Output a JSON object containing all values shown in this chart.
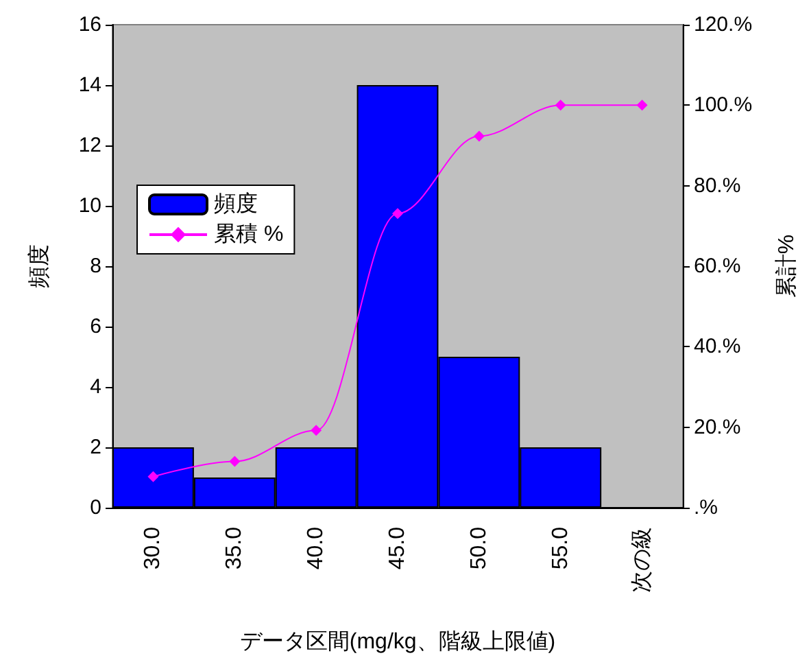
{
  "chart_data": {
    "type": "bar",
    "categories": [
      "30.0",
      "35.0",
      "40.0",
      "45.0",
      "50.0",
      "55.0",
      "次の級"
    ],
    "series": [
      {
        "name": "頻度",
        "color": "#0000ff",
        "values": [
          2,
          1,
          2,
          14,
          5,
          2,
          0
        ]
      },
      {
        "name": "累積 %",
        "type": "line",
        "axis": "y2",
        "color": "#ff00ff",
        "values": [
          7.7,
          11.5,
          19.2,
          73.1,
          92.3,
          100,
          100
        ]
      }
    ],
    "xlabel": "データ区間(mg/kg、階級上限値)",
    "ylabel": "頻度",
    "y2label": "累計%",
    "ylim": [
      0,
      16
    ],
    "yticks": [
      0,
      2,
      4,
      6,
      8,
      10,
      12,
      14,
      16
    ],
    "y2lim": [
      0,
      120
    ],
    "y2ticks": [
      {
        "value": 0,
        "label": ".%"
      },
      {
        "value": 20,
        "label": "20.%"
      },
      {
        "value": 40,
        "label": "40.%"
      },
      {
        "value": 60,
        "label": "60.%"
      },
      {
        "value": 80,
        "label": "80.%"
      },
      {
        "value": 100,
        "label": "100.%"
      },
      {
        "value": 120,
        "label": "120.%"
      }
    ],
    "grid": false,
    "legend": "left",
    "marker": "diamond",
    "line_style": "solid"
  }
}
